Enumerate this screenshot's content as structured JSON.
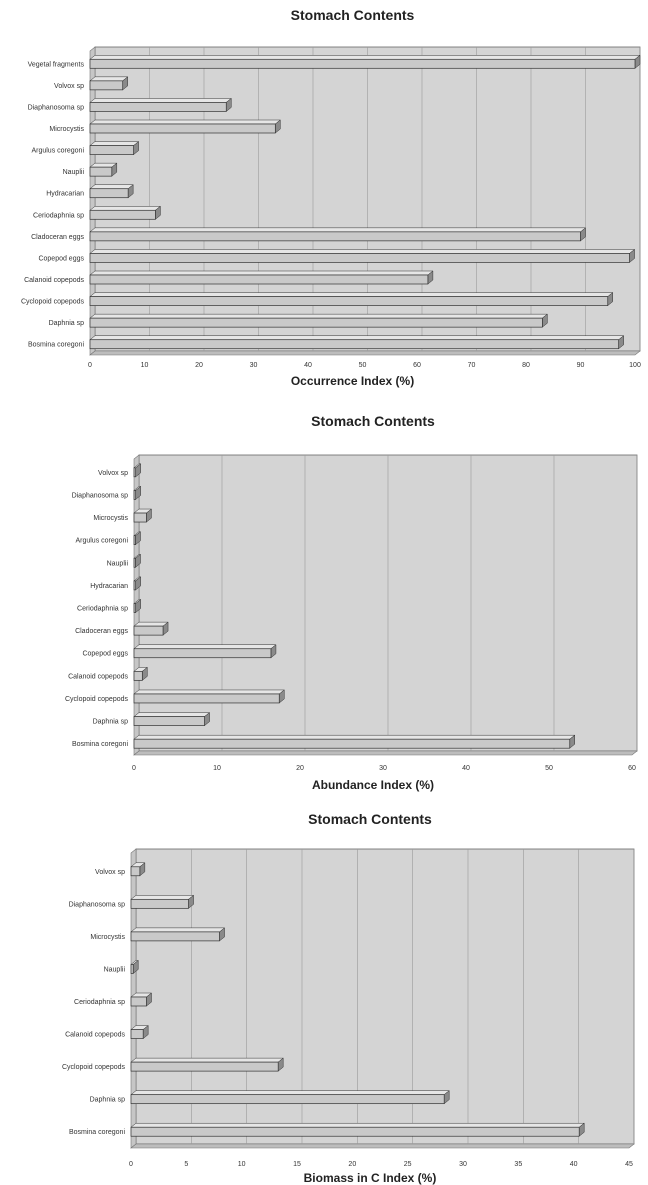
{
  "chart_data": [
    {
      "type": "bar",
      "orientation": "horizontal",
      "title": "Stomach Contents",
      "xlabel": "Occurrence Index (%)",
      "xlim": [
        0,
        100
      ],
      "xticks": [
        0,
        10,
        20,
        30,
        40,
        50,
        60,
        70,
        80,
        90,
        100
      ],
      "categories": [
        "Vegetal fragments",
        "Volvox sp",
        "Diaphanosoma sp",
        "Microcystis",
        "Argulus coregoni",
        "Nauplii",
        "Hydracarian",
        "Ceriodaphnia sp",
        "Cladoceran eggs",
        "Copepod eggs",
        "Calanoid copepods",
        "Cyclopoid copepods",
        "Daphnia sp",
        "Bosmina coregoni"
      ],
      "values": [
        100,
        6,
        25,
        34,
        8,
        4,
        7,
        12,
        90,
        99,
        62,
        95,
        83,
        97
      ]
    },
    {
      "type": "bar",
      "orientation": "horizontal",
      "title": "Stomach Contents",
      "xlabel": "Abundance Index (%)",
      "xlim": [
        0,
        60
      ],
      "xticks": [
        0,
        10,
        20,
        30,
        40,
        50,
        60
      ],
      "categories": [
        "Volvox sp",
        "Diaphanosoma sp",
        "Microcystis",
        "Argulus coregoni",
        "Nauplii",
        "Hydracarian",
        "Ceriodaphnia sp",
        "Cladoceran eggs",
        "Copepod eggs",
        "Calanoid copepods",
        "Cyclopoid copepods",
        "Daphnia sp",
        "Bosmina coregoni"
      ],
      "values": [
        0.2,
        0.2,
        1.5,
        0.1,
        0.1,
        0.2,
        0.2,
        3.5,
        16.5,
        1,
        17.5,
        8.5,
        52.5
      ]
    },
    {
      "type": "bar",
      "orientation": "horizontal",
      "title": "Stomach Contents",
      "xlabel": "Biomass in C Index (%)",
      "xlim": [
        0,
        45
      ],
      "xticks": [
        0,
        5,
        10,
        15,
        20,
        25,
        30,
        35,
        40,
        45
      ],
      "categories": [
        "Volvox sp",
        "Diaphanosoma sp",
        "Microcystis",
        "Nauplii",
        "Ceriodaphnia sp",
        "Calanoid copepods",
        "Cyclopoid copepods",
        "Daphnia sp",
        "Bosmina coregoni"
      ],
      "values": [
        0.8,
        5.2,
        8,
        0.2,
        1.4,
        1.1,
        13.3,
        28.3,
        40.5
      ]
    }
  ]
}
